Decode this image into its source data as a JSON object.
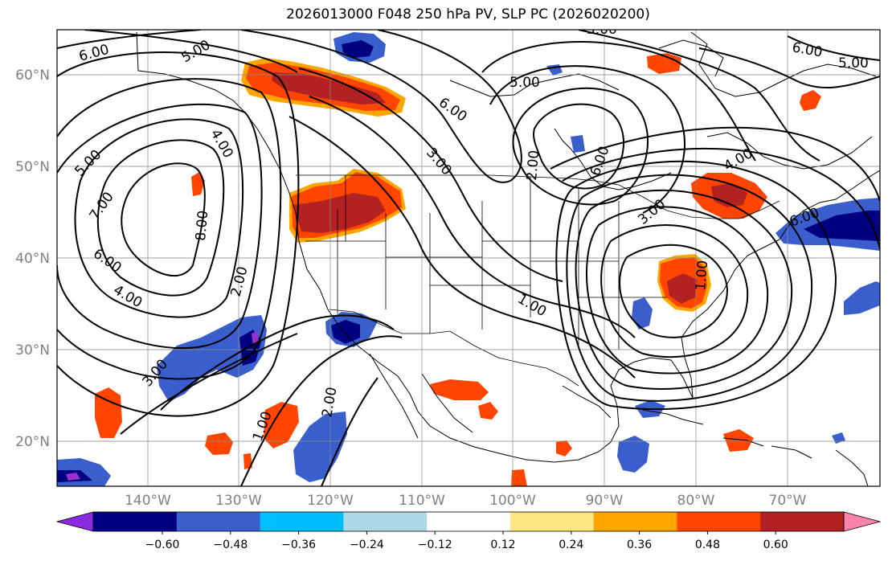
{
  "title": "2026013000 F048 250 hPa PV, SLP PC (2026020200)",
  "lat_labels": [
    "60°N",
    "50°N",
    "40°N",
    "30°N",
    "20°N"
  ],
  "lon_labels": [
    "140°W",
    "130°W",
    "120°W",
    "110°W",
    "100°W",
    "90°W",
    "80°W",
    "70°W"
  ],
  "colorbar": {
    "tick_labels": [
      "−0.60",
      "−0.48",
      "−0.36",
      "−0.24",
      "−0.12",
      "0.12",
      "0.24",
      "0.36",
      "0.48",
      "0.60"
    ],
    "colors": [
      "#8a2be2",
      "#000080",
      "#3a5fcd",
      "#00bfff",
      "#add8e6",
      "#ffffff",
      "#ffe680",
      "#ffa500",
      "#ff4500",
      "#b22222",
      "#ff82ab"
    ]
  },
  "contour_labels": [
    "6.00",
    "5.00",
    "6.00",
    "5.00",
    "7.00",
    "8.00",
    "6.00",
    "4.00",
    "3.00",
    "2.00",
    "1.00",
    "2.00",
    "3.00",
    "6.00",
    "5.00",
    "1.00",
    "3.00",
    "4.00",
    "5.00",
    "6.00",
    "5.00",
    "1.00",
    "2.00",
    "6.00",
    "4.00"
  ],
  "colors": {
    "neg_dark": "#000080",
    "neg_mid": "#3a5fcd",
    "neg_light": "#00bfff",
    "pos_light": "#ffa500",
    "pos_mid": "#ff4500",
    "pos_dark": "#b22222",
    "purple": "#9932cc"
  }
}
